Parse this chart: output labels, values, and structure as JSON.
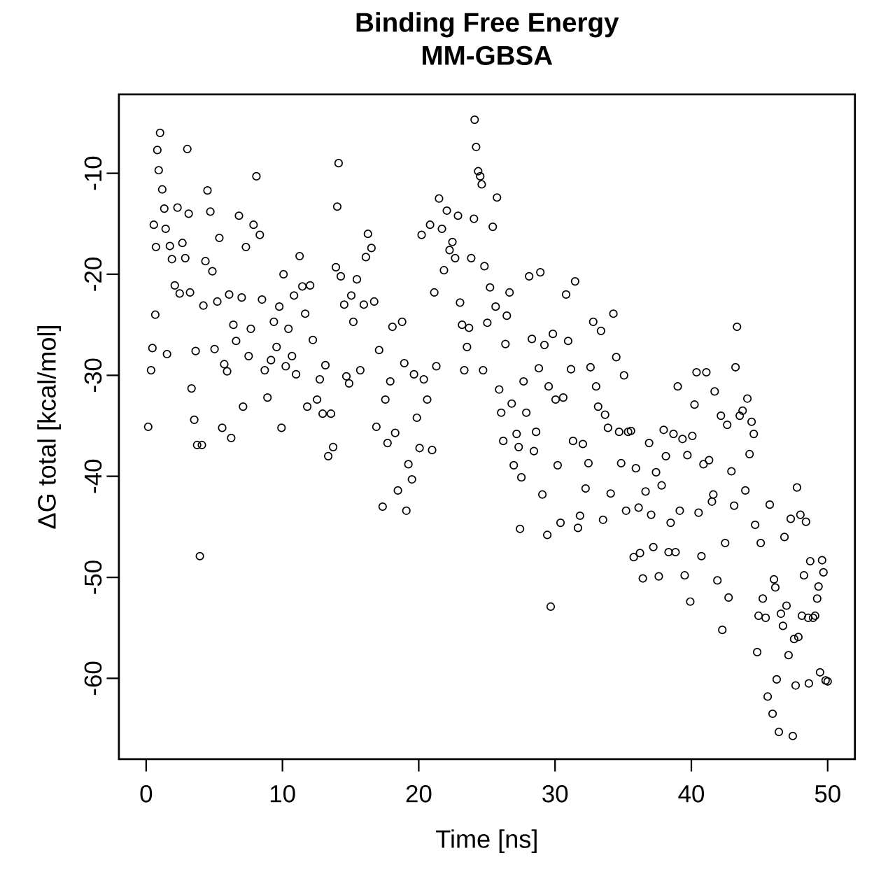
{
  "chart_data": {
    "type": "scatter",
    "title": "Binding Free Energy",
    "subtitle": "MM-GBSA",
    "xlabel": "Time [ns]",
    "ylabel": "ΔG total [kcal/mol]",
    "xlim": [
      -2,
      52
    ],
    "ylim": [
      -68,
      -2.2
    ],
    "xticks": [
      0,
      10,
      20,
      30,
      40,
      50
    ],
    "yticks": [
      -60,
      -50,
      -40,
      -30,
      -20,
      -10
    ],
    "marker": "circle",
    "series": [
      {
        "color": "#000000",
        "x": [
          0.15,
          0.36,
          0.46,
          0.56,
          0.67,
          0.72,
          0.82,
          0.92,
          1.02,
          1.18,
          1.33,
          1.43,
          1.53,
          1.74,
          1.89,
          2.1,
          2.3,
          2.46,
          2.66,
          2.87,
          3.02,
          3.12,
          3.22,
          3.33,
          3.53,
          3.63,
          3.74,
          3.94,
          4.09,
          4.2,
          4.35,
          4.5,
          4.71,
          4.86,
          5.02,
          5.22,
          5.37,
          5.58,
          5.73,
          5.94,
          6.09,
          6.24,
          6.4,
          6.6,
          6.81,
          7.01,
          7.11,
          7.32,
          7.52,
          7.68,
          7.88,
          8.09,
          8.34,
          8.5,
          8.7,
          8.9,
          9.16,
          9.37,
          9.57,
          9.77,
          9.93,
          10.08,
          10.24,
          10.44,
          10.7,
          10.85,
          11.0,
          11.26,
          11.46,
          11.67,
          11.82,
          12.03,
          12.23,
          12.54,
          12.74,
          12.95,
          13.15,
          13.36,
          13.56,
          13.72,
          13.92,
          14.02,
          14.12,
          14.28,
          14.53,
          14.69,
          14.89,
          15.05,
          15.2,
          15.46,
          15.71,
          15.97,
          16.12,
          16.27,
          16.53,
          16.73,
          16.89,
          17.09,
          17.35,
          17.55,
          17.71,
          17.91,
          18.07,
          18.27,
          18.47,
          18.78,
          18.94,
          19.09,
          19.24,
          19.5,
          19.65,
          19.86,
          20.06,
          20.21,
          20.37,
          20.62,
          20.83,
          20.98,
          21.14,
          21.29,
          21.49,
          21.7,
          21.85,
          22.06,
          22.26,
          22.47,
          22.67,
          22.88,
          23.03,
          23.18,
          23.34,
          23.54,
          23.69,
          23.85,
          24.05,
          24.1,
          24.21,
          24.36,
          24.51,
          24.62,
          24.72,
          24.82,
          25.03,
          25.23,
          25.43,
          25.64,
          25.74,
          25.9,
          26.05,
          26.2,
          26.36,
          26.46,
          26.66,
          26.82,
          26.97,
          27.18,
          27.33,
          27.43,
          27.53,
          27.69,
          27.89,
          28.1,
          28.3,
          28.45,
          28.61,
          28.81,
          28.92,
          29.07,
          29.22,
          29.43,
          29.53,
          29.68,
          29.84,
          30.04,
          30.19,
          30.4,
          30.6,
          30.81,
          30.96,
          31.17,
          31.32,
          31.47,
          31.68,
          31.83,
          32.04,
          32.24,
          32.45,
          32.6,
          32.8,
          33.01,
          33.16,
          33.37,
          33.52,
          33.67,
          33.88,
          34.08,
          34.28,
          34.49,
          34.7,
          34.85,
          35.06,
          35.21,
          35.36,
          35.57,
          35.77,
          35.93,
          36.13,
          36.23,
          36.44,
          36.64,
          36.9,
          37.05,
          37.21,
          37.41,
          37.61,
          37.82,
          37.97,
          38.13,
          38.33,
          38.48,
          38.69,
          38.84,
          39.0,
          39.15,
          39.35,
          39.51,
          39.71,
          39.92,
          40.07,
          40.23,
          40.38,
          40.53,
          40.74,
          40.89,
          41.1,
          41.3,
          41.51,
          41.61,
          41.71,
          41.91,
          42.17,
          42.27,
          42.48,
          42.63,
          42.73,
          42.94,
          43.14,
          43.24,
          43.35,
          43.55,
          43.76,
          43.96,
          44.11,
          44.27,
          44.42,
          44.58,
          44.68,
          44.83,
          44.93,
          45.09,
          45.24,
          45.45,
          45.6,
          45.75,
          45.96,
          46.06,
          46.16,
          46.26,
          46.42,
          46.57,
          46.72,
          46.83,
          46.98,
          47.13,
          47.29,
          47.44,
          47.54,
          47.65,
          47.75,
          47.85,
          48.0,
          48.11,
          48.26,
          48.41,
          48.57,
          48.62,
          48.72,
          48.93,
          49.08,
          49.23,
          49.33,
          49.44,
          49.59,
          49.69,
          49.85,
          50.0
        ],
        "values": [
          -35.1,
          -29.5,
          -27.3,
          -15.1,
          -24.0,
          -17.3,
          -7.7,
          -9.7,
          -6.0,
          -11.6,
          -13.5,
          -15.5,
          -27.9,
          -17.2,
          -18.5,
          -21.1,
          -13.4,
          -21.9,
          -16.9,
          -18.4,
          -7.6,
          -14.0,
          -21.8,
          -31.3,
          -34.4,
          -27.6,
          -36.9,
          -47.9,
          -36.9,
          -23.1,
          -18.7,
          -11.7,
          -13.8,
          -19.7,
          -27.4,
          -22.7,
          -16.4,
          -35.2,
          -28.9,
          -29.6,
          -22.0,
          -36.2,
          -25.0,
          -26.6,
          -14.2,
          -22.3,
          -33.1,
          -17.3,
          -28.1,
          -25.4,
          -15.1,
          -10.3,
          -16.1,
          -22.5,
          -29.5,
          -32.2,
          -28.5,
          -24.7,
          -27.2,
          -23.2,
          -35.2,
          -20.0,
          -29.1,
          -25.4,
          -28.1,
          -22.1,
          -29.9,
          -18.2,
          -21.2,
          -23.9,
          -33.1,
          -21.1,
          -26.5,
          -32.4,
          -30.4,
          -33.8,
          -29.0,
          -38.0,
          -33.8,
          -37.1,
          -19.3,
          -13.3,
          -9.0,
          -20.2,
          -23.0,
          -30.1,
          -30.8,
          -22.1,
          -24.7,
          -20.5,
          -29.5,
          -23.0,
          -18.3,
          -16.0,
          -17.4,
          -22.7,
          -35.1,
          -27.5,
          -43.0,
          -32.4,
          -36.7,
          -30.6,
          -25.2,
          -35.7,
          -41.4,
          -24.7,
          -28.8,
          -43.4,
          -38.8,
          -40.3,
          -29.9,
          -34.2,
          -37.2,
          -16.1,
          -30.4,
          -32.4,
          -15.1,
          -37.4,
          -21.8,
          -29.1,
          -12.5,
          -15.5,
          -19.6,
          -13.7,
          -17.6,
          -16.8,
          -18.4,
          -14.2,
          -22.8,
          -25.0,
          -29.5,
          -27.2,
          -25.3,
          -18.4,
          -14.5,
          -4.7,
          -7.4,
          -9.8,
          -10.3,
          -11.1,
          -29.5,
          -19.2,
          -24.8,
          -21.3,
          -15.3,
          -23.2,
          -12.4,
          -31.4,
          -33.7,
          -36.5,
          -26.9,
          -24.1,
          -21.8,
          -32.8,
          -38.9,
          -35.8,
          -37.1,
          -45.2,
          -40.1,
          -30.6,
          -33.7,
          -20.2,
          -26.4,
          -37.5,
          -35.6,
          -29.3,
          -19.8,
          -41.8,
          -27.0,
          -45.8,
          -31.1,
          -52.9,
          -25.9,
          -32.4,
          -38.9,
          -44.6,
          -32.2,
          -22.0,
          -26.6,
          -29.4,
          -36.5,
          -20.7,
          -45.1,
          -43.9,
          -36.8,
          -41.2,
          -38.7,
          -29.2,
          -24.7,
          -31.1,
          -33.1,
          -25.6,
          -44.3,
          -33.9,
          -35.2,
          -41.7,
          -23.9,
          -28.2,
          -35.6,
          -38.7,
          -30.0,
          -43.4,
          -35.6,
          -35.5,
          -48.0,
          -39.2,
          -43.1,
          -47.6,
          -50.1,
          -41.5,
          -36.7,
          -43.8,
          -47.0,
          -39.6,
          -49.9,
          -40.9,
          -35.4,
          -38.0,
          -47.5,
          -44.6,
          -35.8,
          -47.5,
          -31.1,
          -43.4,
          -36.3,
          -49.8,
          -37.9,
          -52.4,
          -36.0,
          -32.9,
          -29.7,
          -43.6,
          -47.9,
          -38.8,
          -29.7,
          -38.4,
          -42.5,
          -41.8,
          -31.6,
          -50.3,
          -34.0,
          -55.2,
          -46.6,
          -34.9,
          -52.0,
          -39.5,
          -42.9,
          -29.2,
          -25.2,
          -34.0,
          -33.5,
          -41.4,
          -32.3,
          -37.8,
          -34.6,
          -35.8,
          -44.8,
          -57.4,
          -53.8,
          -46.6,
          -52.1,
          -54.0,
          -61.8,
          -42.8,
          -63.5,
          -50.2,
          -51.0,
          -60.1,
          -65.3,
          -53.6,
          -54.8,
          -46.0,
          -52.8,
          -57.7,
          -44.2,
          -65.7,
          -56.1,
          -60.7,
          -41.1,
          -55.9,
          -43.8,
          -53.8,
          -49.8,
          -44.5,
          -54.0,
          -60.5,
          -48.4,
          -54.0,
          -53.8,
          -52.1,
          -50.9,
          -59.4,
          -48.3,
          -49.5,
          -60.2,
          -60.3
        ]
      }
    ]
  }
}
